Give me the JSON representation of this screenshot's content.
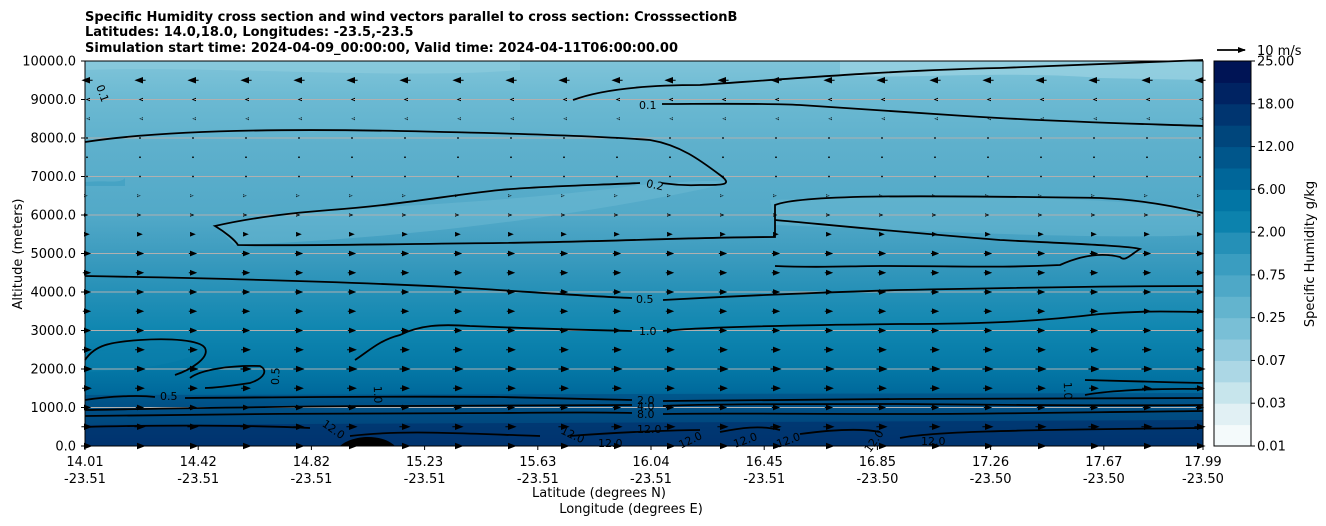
{
  "chart_data": {
    "type": "contourf",
    "title": [
      "Specific Humidity cross section and wind vectors parallel to cross section: CrosssectionB",
      "Latitudes: 14.0,18.0, Longitudes: -23.5,-23.5",
      "Simulation start time: 2024-04-09_00:00:00, Valid time: 2024-04-11T06:00:00.00"
    ],
    "ylabel": "Altitude (meters)",
    "xlabel_lat": "Latitude (degrees N)",
    "xlabel_lon": "Longitude (degrees E)",
    "ylim": [
      0,
      10000
    ],
    "yticks": [
      "0.0",
      "1000.0",
      "2000.0",
      "3000.0",
      "4000.0",
      "5000.0",
      "6000.0",
      "7000.0",
      "8000.0",
      "9000.0",
      "10000.0"
    ],
    "xticks": [
      {
        "lat": "14.01",
        "lon": "-23.51"
      },
      {
        "lat": "14.42",
        "lon": "-23.51"
      },
      {
        "lat": "14.82",
        "lon": "-23.51"
      },
      {
        "lat": "15.23",
        "lon": "-23.51"
      },
      {
        "lat": "15.63",
        "lon": "-23.51"
      },
      {
        "lat": "16.04",
        "lon": "-23.51"
      },
      {
        "lat": "16.45",
        "lon": "-23.51"
      },
      {
        "lat": "16.85",
        "lon": "-23.50"
      },
      {
        "lat": "17.26",
        "lon": "-23.50"
      },
      {
        "lat": "17.67",
        "lon": "-23.50"
      },
      {
        "lat": "17.99",
        "lon": "-23.50"
      }
    ],
    "grid": "horizontal",
    "colorbar": {
      "label": "Specific Humidity g/kg",
      "tick_labels": [
        "0.01",
        "0.03",
        "0.07",
        "0.25",
        "0.75",
        "2.00",
        "6.00",
        "12.00",
        "18.00",
        "25.00"
      ],
      "colors": [
        "#f4fafb",
        "#e1f0f4",
        "#c7e5ec",
        "#acd7e5",
        "#91cadd",
        "#79bfd6",
        "#63b4ce",
        "#4ea8c7",
        "#3a9dc0",
        "#2590b7",
        "#0c82ad",
        "#0275a4",
        "#006699",
        "#00568b",
        "#00467c",
        "#003570",
        "#002362",
        "#001455"
      ]
    },
    "quiver_key": {
      "label": "10 m/s",
      "speed": 10
    },
    "contour_lines": [
      {
        "level": 0.1,
        "label": "0.1"
      },
      {
        "level": 0.2,
        "label": "0.2"
      },
      {
        "level": 0.5,
        "label": "0.5"
      },
      {
        "level": 1.0,
        "label": "1.0"
      },
      {
        "level": 2.0,
        "label": "2.0"
      },
      {
        "level": 4.0,
        "label": "4.0"
      },
      {
        "level": 8.0,
        "label": "8.0"
      },
      {
        "level": 12.0,
        "label": "12.0"
      }
    ],
    "contour_labels": [
      "0.1",
      "0.1",
      "0.2",
      "0.5",
      "0.5",
      "0.5",
      "1.0",
      "1.0",
      "1.0",
      "2.0",
      "4.0",
      "8.0",
      "12.0",
      "12.0",
      "12.0",
      "12.0",
      "12.0",
      "12.0",
      "12.0",
      "12.0",
      "12.0"
    ],
    "humidity_profile": [
      {
        "alt": 0,
        "q": 14.0
      },
      {
        "alt": 500,
        "q": 12.0
      },
      {
        "alt": 800,
        "q": 8.0
      },
      {
        "alt": 1000,
        "q": 4.0
      },
      {
        "alt": 1200,
        "q": 2.0
      },
      {
        "alt": 2000,
        "q": 1.0
      },
      {
        "alt": 3000,
        "q": 0.75
      },
      {
        "alt": 4000,
        "q": 0.5
      },
      {
        "alt": 5000,
        "q": 0.3
      },
      {
        "alt": 6000,
        "q": 0.2
      },
      {
        "alt": 7000,
        "q": 0.15
      },
      {
        "alt": 8000,
        "q": 0.1
      },
      {
        "alt": 9000,
        "q": 0.07
      },
      {
        "alt": 10000,
        "q": 0.05
      }
    ],
    "wind_profile": [
      {
        "alt": 9500,
        "u": -4
      },
      {
        "alt": 9000,
        "u": -1
      },
      {
        "alt": 8000,
        "u": 0
      },
      {
        "alt": 7000,
        "u": 0
      },
      {
        "alt": 6000,
        "u": 1
      },
      {
        "alt": 5000,
        "u": 3
      },
      {
        "alt": 4000,
        "u": 3
      },
      {
        "alt": 3000,
        "u": 3
      },
      {
        "alt": 2000,
        "u": 4
      },
      {
        "alt": 1000,
        "u": 3
      },
      {
        "alt": 500,
        "u": 4
      }
    ]
  }
}
